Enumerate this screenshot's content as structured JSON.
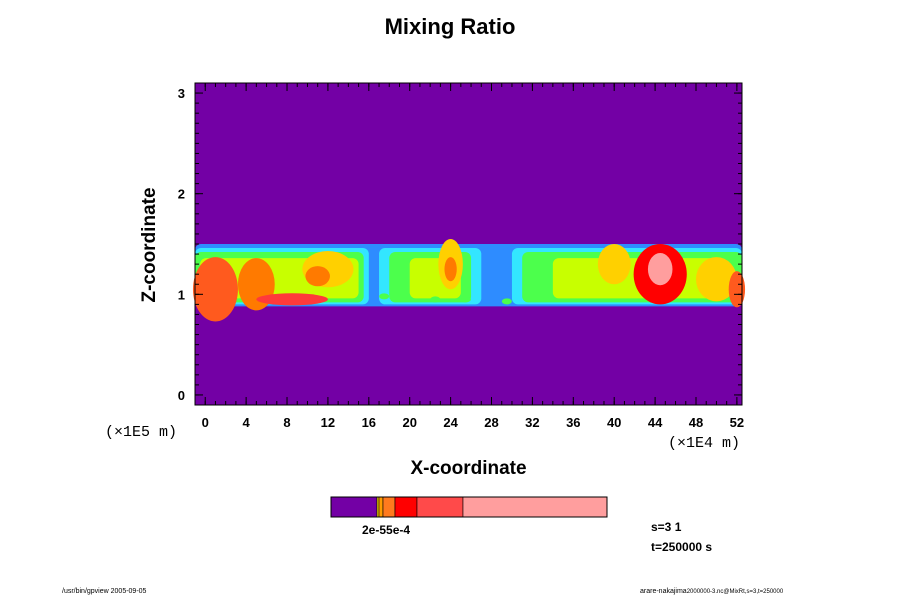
{
  "chart_data": {
    "type": "heatmap",
    "title": "Mixing Ratio",
    "xlabel": "X-coordinate",
    "ylabel": "Z-coordinate",
    "x_scale_label": "(×1E4 m)",
    "y_scale_label": "(×1E5 m)",
    "xlim": [
      -1,
      52.5
    ],
    "ylim": [
      -0.1,
      3.1
    ],
    "x_ticks": [
      "0",
      "4",
      "8",
      "12",
      "16",
      "20",
      "24",
      "28",
      "32",
      "36",
      "40",
      "44",
      "48",
      "52"
    ],
    "y_ticks": [
      "0",
      "1",
      "2",
      "3"
    ],
    "background_color": "#7300a5",
    "colorbar": {
      "colors": [
        "#7300a5",
        "#ffe000",
        "#ff9a00",
        "#ff7a1e",
        "#ff0000",
        "#ff4a4a",
        "#ff9e9e"
      ],
      "label": "2e-55e-4"
    },
    "annotation": [
      "s=3 1",
      "t=250000 s"
    ],
    "footer_left": "/usr/bin/gpview 2005-09-05",
    "footer_right": "arare-nakajima",
    "footer_right_small": "2000000-3.nc@MixRt,s=3,t=250000"
  }
}
